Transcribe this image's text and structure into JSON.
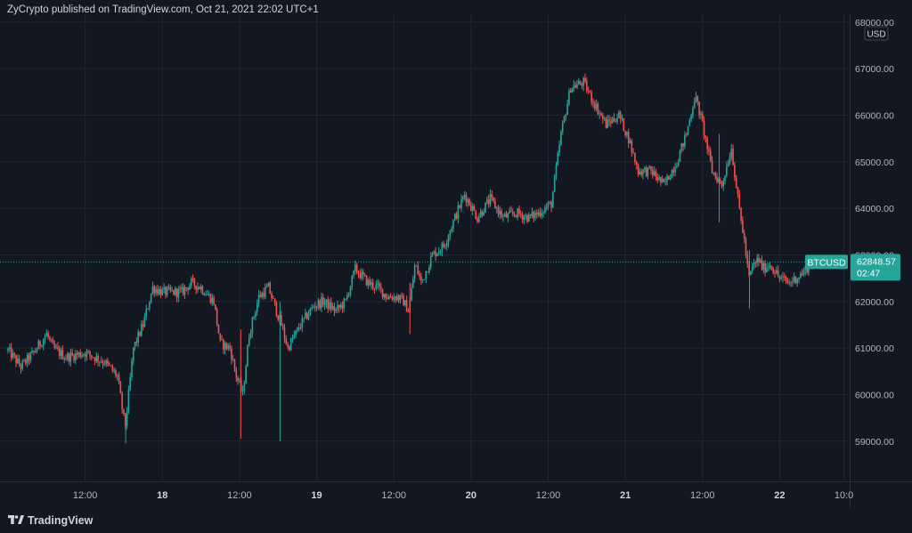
{
  "header": {
    "publisher_line": "ZyCrypto published on TradingView.com, Oct 21, 2021 22:02 UTC+1"
  },
  "footer": {
    "logo_icon": "tradingview-logo-icon",
    "logo_text": "TradingView"
  },
  "price_axis": {
    "currency_badge": "USD"
  },
  "symbol_tag": {
    "symbol": "BTCUSD",
    "price": "62848.57",
    "countdown": "02:47",
    "color": "#26a69a"
  },
  "colors": {
    "background": "#131722",
    "up": "#26a69a",
    "down": "#ef5350",
    "grid": "#222632",
    "text": "#b2b5be"
  },
  "chart_data": {
    "type": "candlestick",
    "symbol": "BTCUSD",
    "currency": "USD",
    "ylim": [
      58000,
      68000
    ],
    "y_ticks": [
      {
        "value": 59000,
        "label": "59000.00"
      },
      {
        "value": 60000,
        "label": "60000.00"
      },
      {
        "value": 61000,
        "label": "61000.00"
      },
      {
        "value": 62000,
        "label": "62000.00"
      },
      {
        "value": 63000,
        "label": "63000.00"
      },
      {
        "value": 64000,
        "label": "64000.00"
      },
      {
        "value": 65000,
        "label": "65000.00"
      },
      {
        "value": 66000,
        "label": "66000.00"
      },
      {
        "value": 67000,
        "label": "67000.00"
      },
      {
        "value": 68000,
        "label": "68000.00"
      }
    ],
    "x_ticks": [
      {
        "label": "12:00",
        "day": false
      },
      {
        "label": "18",
        "day": true
      },
      {
        "label": "12:00",
        "day": false
      },
      {
        "label": "19",
        "day": true
      },
      {
        "label": "12:00",
        "day": false
      },
      {
        "label": "20",
        "day": true
      },
      {
        "label": "12:00",
        "day": false
      },
      {
        "label": "21",
        "day": true
      },
      {
        "label": "12:00",
        "day": false
      },
      {
        "label": "22",
        "day": true
      },
      {
        "label": "10:0",
        "day": false
      }
    ],
    "x_tick_hours": [
      12,
      24,
      36,
      48,
      60,
      72,
      84,
      96,
      108,
      120,
      130
    ],
    "last_price": 62848.57,
    "anchors_hours": [
      0,
      2,
      4,
      6,
      7,
      9,
      12,
      15,
      17,
      18.2,
      18.6,
      19.5,
      21,
      22.5,
      24,
      27,
      28.5,
      30,
      32,
      33,
      34.5,
      35.5,
      36.5,
      37.5,
      39,
      40.5,
      42.5,
      43.5,
      45.5,
      47.5,
      49,
      51,
      52.5,
      54,
      56,
      57.5,
      59,
      60.5,
      61.5,
      62.3,
      63.3,
      64.3,
      66,
      67.8,
      69.5,
      71,
      73,
      75,
      77,
      79,
      81,
      82.5,
      84.5,
      85.3,
      86,
      87.5,
      89.5,
      91,
      93,
      95,
      96.5,
      98,
      100,
      102,
      104,
      105.5,
      106.8,
      107.3,
      108,
      109.5,
      111,
      112.5,
      113.5,
      114.5,
      115.2,
      116,
      116.7,
      117.4,
      118.5,
      120,
      121.5,
      123.5,
      125
    ],
    "anchors_price": [
      60950,
      60600,
      60900,
      61300,
      61000,
      60800,
      60900,
      60700,
      60400,
      59300,
      59800,
      61000,
      61500,
      62300,
      62200,
      62200,
      62400,
      62300,
      62000,
      61100,
      61000,
      60400,
      60000,
      61300,
      62100,
      62300,
      61500,
      61000,
      61500,
      61900,
      62000,
      61800,
      62000,
      62700,
      62400,
      62300,
      62100,
      62100,
      62000,
      61800,
      62800,
      62400,
      63000,
      63200,
      63800,
      64300,
      63800,
      64200,
      63800,
      63900,
      63800,
      63900,
      64100,
      64900,
      65600,
      66600,
      66700,
      66300,
      65800,
      66000,
      65500,
      64800,
      64800,
      64500,
      65000,
      65600,
      66400,
      66200,
      65800,
      64800,
      64500,
      65300,
      64200,
      63300,
      62500,
      62800,
      62900,
      62700,
      62800,
      62500,
      62400,
      62600,
      62850
    ],
    "spikes_hours": [
      18.3,
      36.2,
      42.3,
      62.5,
      110.6,
      115.3
    ],
    "spikes_low": [
      58950,
      59050,
      59000,
      61300,
      63700,
      61850
    ],
    "spikes_high": [
      59600,
      61400,
      62000,
      62400,
      65600,
      63100
    ]
  }
}
